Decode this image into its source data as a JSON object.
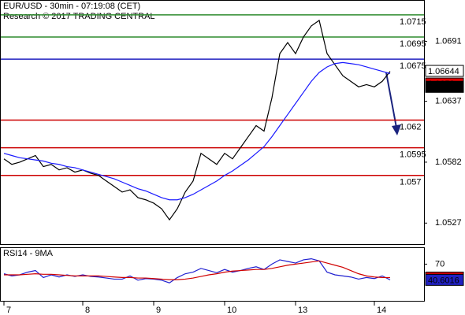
{
  "chart_data": [
    {
      "type": "line",
      "title": "EUR/USD - 30min - 07:19:08 (CET)",
      "subtitle": "Research © 2017 TRADING CENTRAL",
      "categories": [
        "7",
        null,
        null,
        null,
        null,
        null,
        null,
        null,
        null,
        null,
        "8",
        null,
        null,
        null,
        null,
        null,
        null,
        null,
        null,
        "9",
        null,
        null,
        null,
        null,
        null,
        null,
        null,
        null,
        "10",
        null,
        null,
        null,
        null,
        null,
        null,
        null,
        null,
        "13",
        null,
        null,
        null,
        null,
        null,
        null,
        null,
        null,
        null,
        "14",
        null,
        null
      ],
      "series": [
        {
          "color": "#000000",
          "values": [
            1.0585,
            1.058,
            1.0582,
            1.0585,
            1.0588,
            1.0578,
            1.058,
            1.0575,
            1.0577,
            1.0573,
            1.0575,
            1.0572,
            1.057,
            1.0565,
            1.056,
            1.0555,
            1.0557,
            1.055,
            1.0548,
            1.0545,
            1.054,
            1.053,
            1.054,
            1.0555,
            1.0565,
            1.059,
            1.0585,
            1.058,
            1.059,
            1.0585,
            1.0595,
            1.0605,
            1.0615,
            1.061,
            1.064,
            1.068,
            1.069,
            1.068,
            1.0695,
            1.0705,
            1.071,
            1.068,
            1.067,
            1.066,
            1.0655,
            1.065,
            1.0652,
            1.065,
            1.0655,
            1.0664
          ]
        },
        {
          "color": "#1a1aff",
          "values": [
            1.059,
            1.0588,
            1.0586,
            1.0585,
            1.0584,
            1.0583,
            1.0581,
            1.058,
            1.0578,
            1.0577,
            1.0575,
            1.0573,
            1.0571,
            1.0569,
            1.0567,
            1.0564,
            1.0561,
            1.0558,
            1.0556,
            1.0553,
            1.055,
            1.0548,
            1.0548,
            1.055,
            1.0553,
            1.0557,
            1.0561,
            1.0565,
            1.057,
            1.0574,
            1.0579,
            1.0584,
            1.059,
            1.0596,
            1.0605,
            1.0615,
            1.0625,
            1.0635,
            1.0645,
            1.0655,
            1.0663,
            1.0668,
            1.0671,
            1.0672,
            1.0671,
            1.067,
            1.0668,
            1.0666,
            1.0664,
            1.0662
          ]
        }
      ],
      "levels": [
        {
          "value": 1.0715,
          "color": "#2e8b2e"
        },
        {
          "value": 1.0695,
          "color": "#2e8b2e"
        },
        {
          "value": 1.0675,
          "color": "#2020c0"
        },
        {
          "value": 1.062,
          "color": "#cc0000"
        },
        {
          "value": 1.0595,
          "color": "#cc0000"
        },
        {
          "value": 1.057,
          "color": "#cc0000"
        }
      ],
      "price_labels": [
        {
          "value": 1.06644,
          "color": "#ffffff",
          "text_color": "#000000"
        },
        {
          "value": 1.0653,
          "color": "#dd0000",
          "text_color": "#000000"
        },
        {
          "value": 1.065,
          "color": "#000000",
          "text_color": "#ffffff"
        }
      ],
      "ylim": [
        1.0508,
        1.0727
      ],
      "yticks": [
        1.0527,
        1.0582,
        1.0637,
        1.0691
      ]
    },
    {
      "type": "line",
      "title": "RSI14 - 9MA",
      "series": [
        {
          "color": "#2020d0",
          "values": [
            52,
            48,
            50,
            55,
            58,
            45,
            50,
            46,
            50,
            47,
            50,
            47,
            46,
            44,
            42,
            42,
            48,
            40,
            43,
            42,
            40,
            35,
            45,
            52,
            55,
            62,
            58,
            54,
            60,
            55,
            58,
            62,
            65,
            60,
            70,
            78,
            75,
            72,
            78,
            80,
            76,
            55,
            50,
            48,
            46,
            42,
            45,
            43,
            48,
            40.6016
          ]
        },
        {
          "color": "#d00000",
          "values": [
            50,
            50,
            50,
            51,
            52,
            51,
            51,
            50,
            49,
            48,
            48,
            48,
            48,
            47,
            46,
            45,
            45,
            44,
            44,
            43,
            42,
            41,
            41,
            42,
            44,
            47,
            50,
            52,
            55,
            57,
            58,
            59,
            60,
            60,
            62,
            65,
            68,
            70,
            72,
            74,
            76,
            72,
            68,
            64,
            58,
            52,
            48,
            46,
            45,
            44.8961
          ]
        }
      ],
      "price_labels": [
        {
          "value": 44.8961,
          "color": "#dd0000",
          "text_color": "#ffffff"
        },
        {
          "value": 40.6016,
          "color": "#2020c0",
          "text_color": "#ffffff"
        }
      ],
      "ylim": [
        0,
        100
      ],
      "yticks": [
        70
      ]
    }
  ]
}
